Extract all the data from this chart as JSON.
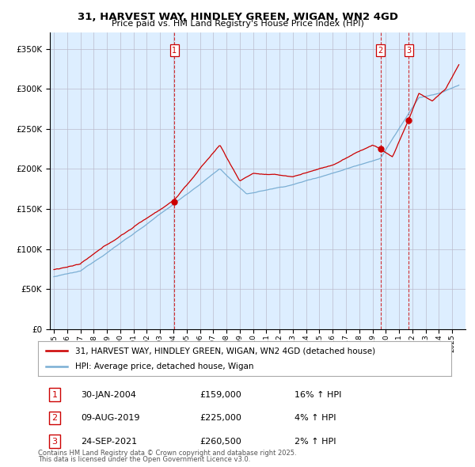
{
  "title": "31, HARVEST WAY, HINDLEY GREEN, WIGAN, WN2 4GD",
  "subtitle": "Price paid vs. HM Land Registry's House Price Index (HPI)",
  "ylim": [
    0,
    370000
  ],
  "yticks": [
    0,
    50000,
    100000,
    150000,
    200000,
    250000,
    300000,
    350000
  ],
  "legend_line1": "31, HARVEST WAY, HINDLEY GREEN, WIGAN, WN2 4GD (detached house)",
  "legend_line2": "HPI: Average price, detached house, Wigan",
  "sale_points": [
    {
      "num": 1,
      "date": "30-JAN-2004",
      "price": 159000,
      "year": 2004.08,
      "hpi_pct": "16%"
    },
    {
      "num": 2,
      "date": "09-AUG-2019",
      "price": 225000,
      "year": 2019.6,
      "hpi_pct": "4%"
    },
    {
      "num": 3,
      "date": "24-SEP-2021",
      "price": 260500,
      "year": 2021.73,
      "hpi_pct": "2%"
    }
  ],
  "footer_line1": "Contains HM Land Registry data © Crown copyright and database right 2025.",
  "footer_line2": "This data is licensed under the Open Government Licence v3.0.",
  "red_color": "#cc0000",
  "blue_color": "#7bafd4",
  "bg_fill": "#ddeeff",
  "background_color": "#ffffff",
  "grid_color": "#bbbbcc"
}
